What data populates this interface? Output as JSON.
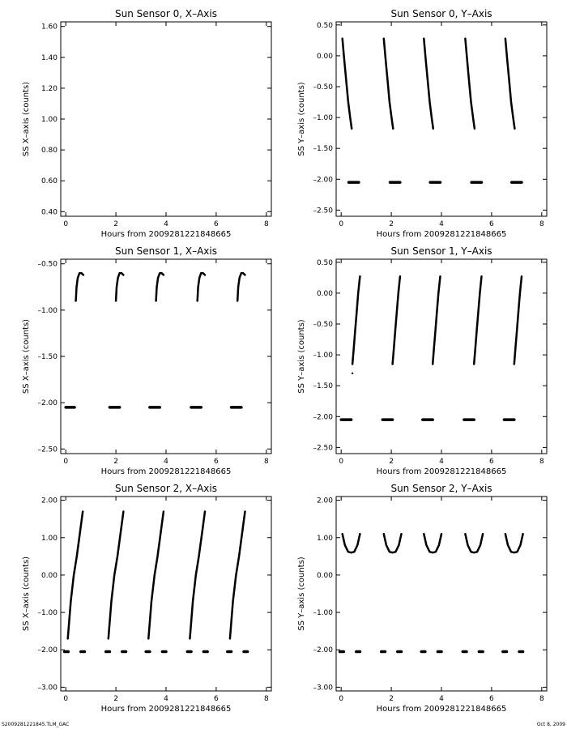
{
  "footer": {
    "left": "S20092812218​45.TLM_GAC",
    "right": "Oct  8, 2009"
  },
  "chart_data": [
    {
      "type": "scatter",
      "title": "Sun Sensor 0, X–Axis",
      "xlabel": "Hours from 20092812218​48665",
      "ylabel": "SS X–axis (counts)",
      "xlim": [
        -0.2,
        8.2
      ],
      "ylim": [
        0.37,
        1.63
      ],
      "xticks": [
        0,
        2,
        4,
        6,
        8
      ],
      "yticks": [
        0.4,
        0.6,
        0.8,
        1.0,
        1.2,
        1.4,
        1.6
      ],
      "ytick_labels": [
        "0.40",
        "0.60",
        "0.80",
        "1.00",
        "1.20",
        "1.40",
        "1.60"
      ],
      "series": []
    },
    {
      "type": "scatter",
      "title": "Sun Sensor 0, Y–Axis",
      "xlabel": "Hours from 20092812218​48665",
      "ylabel": "SS Y–axis (counts)",
      "xlim": [
        -0.2,
        8.2
      ],
      "ylim": [
        -2.6,
        0.55
      ],
      "xticks": [
        0,
        2,
        4,
        6,
        8
      ],
      "yticks": [
        0.5,
        0.0,
        -0.5,
        -1.0,
        -1.5,
        -2.0,
        -2.5
      ],
      "ytick_labels": [
        "0.50",
        "0.00",
        "–0.50",
        "–1.00",
        "–1.50",
        "–2.00",
        "–2.50"
      ],
      "series": [
        {
          "type": "curve",
          "x": [
            0.05,
            0.12,
            0.2,
            0.28,
            0.36,
            0.42
          ],
          "y": [
            0.28,
            -0.05,
            -0.4,
            -0.75,
            -1.0,
            -1.18
          ]
        },
        {
          "type": "curve",
          "x": [
            1.7,
            1.77,
            1.85,
            1.93,
            2.01,
            2.07
          ],
          "y": [
            0.28,
            -0.05,
            -0.4,
            -0.75,
            -1.0,
            -1.18
          ]
        },
        {
          "type": "curve",
          "x": [
            3.3,
            3.37,
            3.45,
            3.53,
            3.61,
            3.67
          ],
          "y": [
            0.28,
            -0.05,
            -0.4,
            -0.75,
            -1.0,
            -1.18
          ]
        },
        {
          "type": "curve",
          "x": [
            4.95,
            5.02,
            5.1,
            5.18,
            5.26,
            5.32
          ],
          "y": [
            0.28,
            -0.05,
            -0.4,
            -0.75,
            -1.0,
            -1.18
          ]
        },
        {
          "type": "curve",
          "x": [
            6.55,
            6.62,
            6.7,
            6.78,
            6.86,
            6.92
          ],
          "y": [
            0.28,
            -0.05,
            -0.4,
            -0.75,
            -1.0,
            -1.18
          ]
        },
        {
          "type": "dash",
          "x": [
            0.3,
            0.7
          ],
          "y": [
            -2.05,
            -2.05
          ]
        },
        {
          "type": "dash",
          "x": [
            1.95,
            2.35
          ],
          "y": [
            -2.05,
            -2.05
          ]
        },
        {
          "type": "dash",
          "x": [
            3.55,
            3.95
          ],
          "y": [
            -2.05,
            -2.05
          ]
        },
        {
          "type": "dash",
          "x": [
            5.2,
            5.6
          ],
          "y": [
            -2.05,
            -2.05
          ]
        },
        {
          "type": "dash",
          "x": [
            6.8,
            7.2
          ],
          "y": [
            -2.05,
            -2.05
          ]
        }
      ]
    },
    {
      "type": "scatter",
      "title": "Sun Sensor 1, X–Axis",
      "xlabel": "Hours from 20092812218​48665",
      "ylabel": "SS X–axis (counts)",
      "xlim": [
        -0.2,
        8.2
      ],
      "ylim": [
        -2.55,
        -0.45
      ],
      "xticks": [
        0,
        2,
        4,
        6,
        8
      ],
      "yticks": [
        -0.5,
        -1.0,
        -1.5,
        -2.0,
        -2.5
      ],
      "ytick_labels": [
        "–0.50",
        "–1.00",
        "–1.50",
        "–2.00",
        "–2.50"
      ],
      "series": [
        {
          "type": "curve",
          "x": [
            0.4,
            0.43,
            0.48,
            0.55,
            0.62,
            0.7
          ],
          "y": [
            -0.9,
            -0.75,
            -0.65,
            -0.6,
            -0.6,
            -0.62
          ]
        },
        {
          "type": "curve",
          "x": [
            2.0,
            2.03,
            2.08,
            2.15,
            2.22,
            2.3
          ],
          "y": [
            -0.9,
            -0.75,
            -0.65,
            -0.6,
            -0.6,
            -0.62
          ]
        },
        {
          "type": "curve",
          "x": [
            3.6,
            3.63,
            3.68,
            3.75,
            3.82,
            3.9
          ],
          "y": [
            -0.9,
            -0.75,
            -0.65,
            -0.6,
            -0.6,
            -0.62
          ]
        },
        {
          "type": "curve",
          "x": [
            5.25,
            5.28,
            5.33,
            5.4,
            5.47,
            5.55
          ],
          "y": [
            -0.9,
            -0.75,
            -0.65,
            -0.6,
            -0.6,
            -0.62
          ]
        },
        {
          "type": "curve",
          "x": [
            6.85,
            6.88,
            6.93,
            7.0,
            7.07,
            7.15
          ],
          "y": [
            -0.9,
            -0.75,
            -0.65,
            -0.6,
            -0.6,
            -0.62
          ]
        },
        {
          "type": "dash",
          "x": [
            0.0,
            0.35
          ],
          "y": [
            -2.05,
            -2.05
          ]
        },
        {
          "type": "dash",
          "x": [
            1.75,
            2.15
          ],
          "y": [
            -2.05,
            -2.05
          ]
        },
        {
          "type": "dash",
          "x": [
            3.35,
            3.75
          ],
          "y": [
            -2.05,
            -2.05
          ]
        },
        {
          "type": "dash",
          "x": [
            5.0,
            5.4
          ],
          "y": [
            -2.05,
            -2.05
          ]
        },
        {
          "type": "dash",
          "x": [
            6.6,
            7.0
          ],
          "y": [
            -2.05,
            -2.05
          ]
        }
      ]
    },
    {
      "type": "scatter",
      "title": "Sun Sensor 1, Y–Axis",
      "xlabel": "Hours from 20092812218​48665",
      "ylabel": "SS Y–axis (counts)",
      "xlim": [
        -0.2,
        8.2
      ],
      "ylim": [
        -2.6,
        0.55
      ],
      "xticks": [
        0,
        2,
        4,
        6,
        8
      ],
      "yticks": [
        0.5,
        0.0,
        -0.5,
        -1.0,
        -1.5,
        -2.0,
        -2.5
      ],
      "ytick_labels": [
        "0.50",
        "0.00",
        "–0.50",
        "–1.00",
        "–1.50",
        "–2.00",
        "–2.50"
      ],
      "series": [
        {
          "type": "curve",
          "x": [
            0.45,
            0.5,
            0.56,
            0.62,
            0.68,
            0.75
          ],
          "y": [
            -1.15,
            -0.9,
            -0.6,
            -0.3,
            0.0,
            0.27
          ]
        },
        {
          "type": "curve",
          "x": [
            2.05,
            2.1,
            2.16,
            2.22,
            2.28,
            2.35
          ],
          "y": [
            -1.15,
            -0.9,
            -0.6,
            -0.3,
            0.0,
            0.27
          ]
        },
        {
          "type": "curve",
          "x": [
            3.65,
            3.7,
            3.76,
            3.82,
            3.88,
            3.95
          ],
          "y": [
            -1.15,
            -0.9,
            -0.6,
            -0.3,
            0.0,
            0.27
          ]
        },
        {
          "type": "curve",
          "x": [
            5.3,
            5.35,
            5.41,
            5.47,
            5.53,
            5.6
          ],
          "y": [
            -1.15,
            -0.9,
            -0.6,
            -0.3,
            0.0,
            0.27
          ]
        },
        {
          "type": "curve",
          "x": [
            6.9,
            6.95,
            7.01,
            7.07,
            7.13,
            7.2
          ],
          "y": [
            -1.15,
            -0.9,
            -0.6,
            -0.3,
            0.0,
            0.27
          ]
        },
        {
          "type": "point",
          "x": [
            0.45
          ],
          "y": [
            -1.3
          ]
        },
        {
          "type": "dash",
          "x": [
            0.0,
            0.4
          ],
          "y": [
            -2.05,
            -2.05
          ]
        },
        {
          "type": "dash",
          "x": [
            1.65,
            2.05
          ],
          "y": [
            -2.05,
            -2.05
          ]
        },
        {
          "type": "dash",
          "x": [
            3.25,
            3.65
          ],
          "y": [
            -2.05,
            -2.05
          ]
        },
        {
          "type": "dash",
          "x": [
            4.9,
            5.3
          ],
          "y": [
            -2.05,
            -2.05
          ]
        },
        {
          "type": "dash",
          "x": [
            6.5,
            6.9
          ],
          "y": [
            -2.05,
            -2.05
          ]
        }
      ]
    },
    {
      "type": "scatter",
      "title": "Sun Sensor 2, X–Axis",
      "xlabel": "Hours from 20092812218​48665",
      "ylabel": "SS X–axis (counts)",
      "xlim": [
        -0.2,
        8.2
      ],
      "ylim": [
        -3.1,
        2.1
      ],
      "xticks": [
        0,
        2,
        4,
        6,
        8
      ],
      "yticks": [
        2.0,
        1.0,
        0.0,
        -1.0,
        -2.0,
        -3.0
      ],
      "ytick_labels": [
        "2.00",
        "1.00",
        "0.00",
        "–1.00",
        "–2.00",
        "–3.00"
      ],
      "series": [
        {
          "type": "curve",
          "x": [
            0.08,
            0.2,
            0.32,
            0.44,
            0.56,
            0.68
          ],
          "y": [
            -1.7,
            -0.7,
            0.0,
            0.5,
            1.1,
            1.7
          ]
        },
        {
          "type": "curve",
          "x": [
            1.7,
            1.82,
            1.94,
            2.06,
            2.18,
            2.3
          ],
          "y": [
            -1.7,
            -0.7,
            0.0,
            0.5,
            1.1,
            1.7
          ]
        },
        {
          "type": "curve",
          "x": [
            3.3,
            3.42,
            3.54,
            3.66,
            3.78,
            3.9
          ],
          "y": [
            -1.7,
            -0.7,
            0.0,
            0.5,
            1.1,
            1.7
          ]
        },
        {
          "type": "curve",
          "x": [
            4.95,
            5.07,
            5.19,
            5.31,
            5.43,
            5.55
          ],
          "y": [
            -1.7,
            -0.7,
            0.0,
            0.5,
            1.1,
            1.7
          ]
        },
        {
          "type": "curve",
          "x": [
            6.55,
            6.67,
            6.79,
            6.91,
            7.03,
            7.15
          ],
          "y": [
            -1.7,
            -0.7,
            0.0,
            0.5,
            1.1,
            1.7
          ]
        },
        {
          "type": "dash",
          "x": [
            -0.05,
            0.1
          ],
          "y": [
            -2.05,
            -2.05
          ]
        },
        {
          "type": "dash",
          "x": [
            0.6,
            0.75
          ],
          "y": [
            -2.05,
            -2.05
          ]
        },
        {
          "type": "dash",
          "x": [
            1.6,
            1.75
          ],
          "y": [
            -2.05,
            -2.05
          ]
        },
        {
          "type": "dash",
          "x": [
            2.25,
            2.4
          ],
          "y": [
            -2.05,
            -2.05
          ]
        },
        {
          "type": "dash",
          "x": [
            3.2,
            3.35
          ],
          "y": [
            -2.05,
            -2.05
          ]
        },
        {
          "type": "dash",
          "x": [
            3.85,
            4.0
          ],
          "y": [
            -2.05,
            -2.05
          ]
        },
        {
          "type": "dash",
          "x": [
            4.85,
            5.0
          ],
          "y": [
            -2.05,
            -2.05
          ]
        },
        {
          "type": "dash",
          "x": [
            5.5,
            5.65
          ],
          "y": [
            -2.05,
            -2.05
          ]
        },
        {
          "type": "dash",
          "x": [
            6.45,
            6.6
          ],
          "y": [
            -2.05,
            -2.05
          ]
        },
        {
          "type": "dash",
          "x": [
            7.1,
            7.25
          ],
          "y": [
            -2.05,
            -2.05
          ]
        }
      ]
    },
    {
      "type": "scatter",
      "title": "Sun Sensor 2, Y–Axis",
      "xlabel": "Hours from 20092812218​48665",
      "ylabel": "SS Y–axis (counts)",
      "xlim": [
        -0.2,
        8.2
      ],
      "ylim": [
        -3.1,
        2.1
      ],
      "xticks": [
        0,
        2,
        4,
        6,
        8
      ],
      "yticks": [
        2.0,
        1.0,
        0.0,
        -1.0,
        -2.0,
        -3.0
      ],
      "ytick_labels": [
        "2.00",
        "1.00",
        "0.00",
        "–1.00",
        "–2.00",
        "–3.00"
      ],
      "series": [
        {
          "type": "curve",
          "x": [
            0.05,
            0.15,
            0.28,
            0.4,
            0.52,
            0.65,
            0.75
          ],
          "y": [
            1.1,
            0.8,
            0.62,
            0.6,
            0.62,
            0.8,
            1.1
          ]
        },
        {
          "type": "curve",
          "x": [
            1.7,
            1.8,
            1.93,
            2.05,
            2.17,
            2.3,
            2.4
          ],
          "y": [
            1.1,
            0.8,
            0.62,
            0.6,
            0.62,
            0.8,
            1.1
          ]
        },
        {
          "type": "curve",
          "x": [
            3.3,
            3.4,
            3.53,
            3.65,
            3.77,
            3.9,
            4.0
          ],
          "y": [
            1.1,
            0.8,
            0.62,
            0.6,
            0.62,
            0.8,
            1.1
          ]
        },
        {
          "type": "curve",
          "x": [
            4.95,
            5.05,
            5.18,
            5.3,
            5.42,
            5.55,
            5.65
          ],
          "y": [
            1.1,
            0.8,
            0.62,
            0.6,
            0.62,
            0.8,
            1.1
          ]
        },
        {
          "type": "curve",
          "x": [
            6.55,
            6.65,
            6.78,
            6.9,
            7.02,
            7.15,
            7.25
          ],
          "y": [
            1.1,
            0.8,
            0.62,
            0.6,
            0.62,
            0.8,
            1.1
          ]
        },
        {
          "type": "dash",
          "x": [
            -0.05,
            0.1
          ],
          "y": [
            -2.05,
            -2.05
          ]
        },
        {
          "type": "dash",
          "x": [
            0.6,
            0.75
          ],
          "y": [
            -2.05,
            -2.05
          ]
        },
        {
          "type": "dash",
          "x": [
            1.6,
            1.75
          ],
          "y": [
            -2.05,
            -2.05
          ]
        },
        {
          "type": "dash",
          "x": [
            2.25,
            2.4
          ],
          "y": [
            -2.05,
            -2.05
          ]
        },
        {
          "type": "dash",
          "x": [
            3.2,
            3.35
          ],
          "y": [
            -2.05,
            -2.05
          ]
        },
        {
          "type": "dash",
          "x": [
            3.85,
            4.0
          ],
          "y": [
            -2.05,
            -2.05
          ]
        },
        {
          "type": "dash",
          "x": [
            4.85,
            5.0
          ],
          "y": [
            -2.05,
            -2.05
          ]
        },
        {
          "type": "dash",
          "x": [
            5.5,
            5.65
          ],
          "y": [
            -2.05,
            -2.05
          ]
        },
        {
          "type": "dash",
          "x": [
            6.45,
            6.6
          ],
          "y": [
            -2.05,
            -2.05
          ]
        },
        {
          "type": "dash",
          "x": [
            7.1,
            7.25
          ],
          "y": [
            -2.05,
            -2.05
          ]
        }
      ]
    }
  ]
}
